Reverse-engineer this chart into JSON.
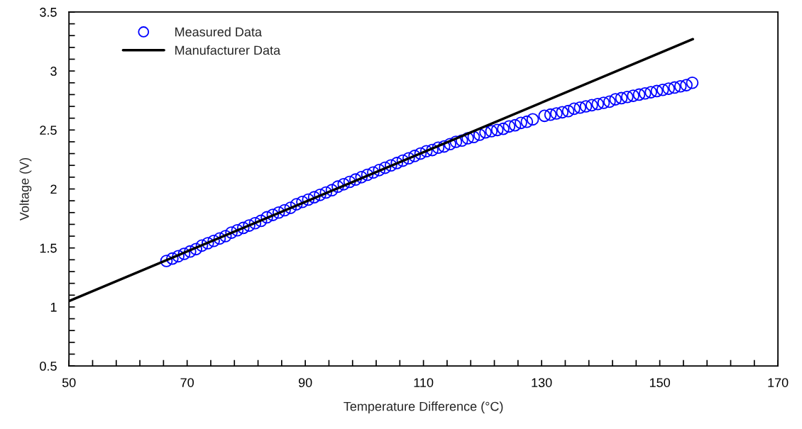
{
  "chart_data": {
    "type": "scatter",
    "xlabel": "Temperature Difference (°C)",
    "ylabel": "Voltage (V)",
    "xlim": [
      50,
      170
    ],
    "ylim": [
      0.5,
      3.5
    ],
    "xticks": [
      50,
      {
        "value": 54,
        "label": null
      },
      {
        "value": 58,
        "label": null
      },
      {
        "value": 62,
        "label": null
      },
      {
        "value": 66,
        "label": null
      },
      70,
      {
        "value": 74,
        "label": null
      },
      {
        "value": 78,
        "label": null
      },
      {
        "value": 82,
        "label": null
      },
      {
        "value": 86,
        "label": null
      },
      90,
      {
        "value": 94,
        "label": null
      },
      {
        "value": 98,
        "label": null
      },
      {
        "value": 102,
        "label": null
      },
      {
        "value": 106,
        "label": null
      },
      110,
      {
        "value": 114,
        "label": null
      },
      {
        "value": 118,
        "label": null
      },
      {
        "value": 122,
        "label": null
      },
      {
        "value": 126,
        "label": null
      },
      130,
      {
        "value": 134,
        "label": null
      },
      {
        "value": 138,
        "label": null
      },
      {
        "value": 142,
        "label": null
      },
      {
        "value": 146,
        "label": null
      },
      150,
      {
        "value": 154,
        "label": null
      },
      {
        "value": 158,
        "label": null
      },
      {
        "value": 162,
        "label": null
      },
      {
        "value": 166,
        "label": null
      },
      170
    ],
    "yticks": [
      0.5,
      {
        "value": 0.6,
        "label": null
      },
      {
        "value": 0.7,
        "label": null
      },
      {
        "value": 0.8,
        "label": null
      },
      {
        "value": 0.9,
        "label": null
      },
      1,
      {
        "value": 1.1,
        "label": null
      },
      {
        "value": 1.2,
        "label": null
      },
      {
        "value": 1.3,
        "label": null
      },
      {
        "value": 1.4,
        "label": null
      },
      1.5,
      {
        "value": 1.6,
        "label": null
      },
      {
        "value": 1.7,
        "label": null
      },
      {
        "value": 1.8,
        "label": null
      },
      {
        "value": 1.9,
        "label": null
      },
      2,
      {
        "value": 2.1,
        "label": null
      },
      {
        "value": 2.2,
        "label": null
      },
      {
        "value": 2.3,
        "label": null
      },
      {
        "value": 2.4,
        "label": null
      },
      2.5,
      {
        "value": 2.6,
        "label": null
      },
      {
        "value": 2.7,
        "label": null
      },
      {
        "value": 2.8,
        "label": null
      },
      {
        "value": 2.9,
        "label": null
      },
      3,
      {
        "value": 3.1,
        "label": null
      },
      {
        "value": 3.2,
        "label": null
      },
      {
        "value": 3.3,
        "label": null
      },
      {
        "value": 3.4,
        "label": null
      },
      3.5
    ],
    "grid": false,
    "legend": "top left",
    "series": [
      {
        "name": "Measured Data",
        "marker": "circle",
        "color": "#0000ff",
        "x": [
          66.5,
          67.5,
          68.5,
          69.5,
          70.5,
          71.5,
          72.5,
          73.5,
          74.5,
          75.5,
          76.5,
          77.5,
          78.5,
          79.5,
          80.5,
          81.5,
          82.5,
          83.5,
          84.5,
          85.5,
          86.5,
          87.5,
          88.5,
          89.5,
          90.5,
          91.5,
          92.5,
          93.5,
          94.5,
          95.5,
          96.5,
          97.5,
          98.5,
          99.5,
          100.5,
          101.5,
          102.5,
          103.5,
          104.5,
          105.5,
          106.5,
          107.5,
          108.5,
          109.5,
          110.5,
          111.5,
          112.5,
          113.5,
          114.5,
          115.5,
          116.5,
          117.5,
          118.5,
          119.5,
          120.5,
          121.5,
          122.5,
          123.5,
          124.5,
          125.5,
          126.5,
          127.5,
          128.5,
          130.5,
          131.5,
          132.5,
          133.5,
          134.5,
          135.5,
          136.5,
          137.5,
          138.5,
          139.5,
          140.5,
          141.5,
          142.5,
          143.5,
          144.5,
          145.5,
          146.5,
          147.5,
          148.5,
          149.5,
          150.5,
          151.5,
          152.5,
          153.5,
          154.5,
          155.5
        ],
        "values": [
          1.39,
          1.41,
          1.43,
          1.45,
          1.47,
          1.49,
          1.52,
          1.54,
          1.56,
          1.58,
          1.6,
          1.63,
          1.65,
          1.67,
          1.69,
          1.71,
          1.73,
          1.76,
          1.78,
          1.8,
          1.82,
          1.84,
          1.87,
          1.89,
          1.91,
          1.93,
          1.95,
          1.97,
          1.99,
          2.02,
          2.04,
          2.06,
          2.08,
          2.1,
          2.12,
          2.14,
          2.16,
          2.18,
          2.2,
          2.22,
          2.24,
          2.26,
          2.28,
          2.3,
          2.32,
          2.33,
          2.35,
          2.36,
          2.38,
          2.4,
          2.41,
          2.43,
          2.44,
          2.46,
          2.48,
          2.49,
          2.5,
          2.51,
          2.53,
          2.54,
          2.56,
          2.57,
          2.59,
          2.62,
          2.63,
          2.64,
          2.65,
          2.66,
          2.68,
          2.69,
          2.7,
          2.71,
          2.72,
          2.73,
          2.74,
          2.76,
          2.77,
          2.78,
          2.79,
          2.8,
          2.81,
          2.82,
          2.83,
          2.84,
          2.85,
          2.86,
          2.87,
          2.88,
          2.9
        ]
      },
      {
        "name": "Manufacturer Data",
        "type": "line",
        "marker": "none",
        "line_style": "solid",
        "color": "#000000",
        "x": [
          50,
          155.6
        ],
        "values": [
          1.05,
          3.27
        ]
      }
    ]
  }
}
